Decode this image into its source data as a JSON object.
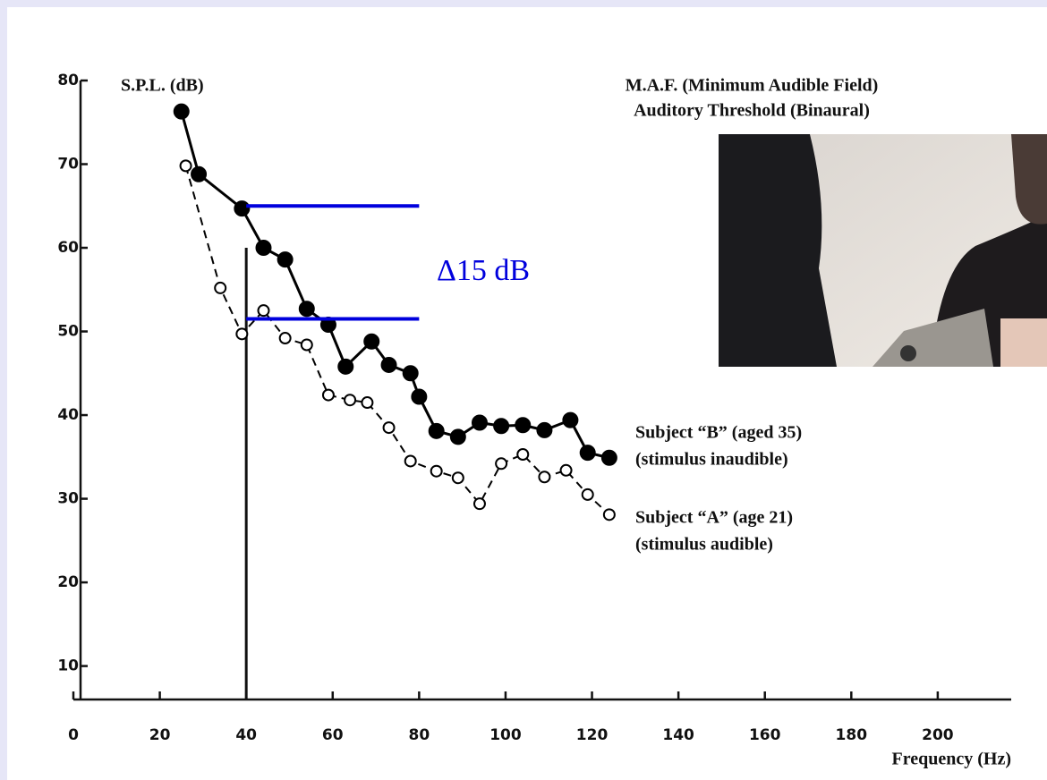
{
  "chart_data": {
    "type": "line",
    "title": "M.A.F. (Minimum Audible Field)",
    "subtitle": "Auditory Threshold (Binaural)",
    "y_label": "S.P.L. (dB)",
    "x_label": "Frequency (Hz)",
    "xlim": [
      0,
      217
    ],
    "ylim": [
      6,
      80
    ],
    "xticks": [
      0,
      20,
      40,
      60,
      80,
      100,
      120,
      140,
      160,
      180,
      200
    ],
    "yticks": [
      10,
      20,
      30,
      40,
      50,
      60,
      70,
      80
    ],
    "series": [
      {
        "name": "Subject “B” (aged 35)",
        "note": "(stimulus inaudible)",
        "color": "#000000",
        "marker": "filled",
        "dashed": false,
        "x": [
          25,
          29,
          39,
          44,
          49,
          54,
          59,
          63,
          69,
          73,
          78,
          80,
          84,
          89,
          94,
          99,
          104,
          109,
          115,
          119,
          124
        ],
        "values": [
          76.3,
          68.8,
          64.7,
          60,
          58.6,
          52.7,
          50.8,
          45.8,
          48.8,
          46,
          45,
          42.2,
          38.1,
          37.4,
          39.1,
          38.7,
          38.8,
          38.2,
          39.4,
          35.5,
          34.9
        ]
      },
      {
        "name": "Subject “A” (age 21)",
        "note": "(stimulus audible)",
        "color": "#000000",
        "marker": "open",
        "dashed": true,
        "x": [
          26,
          34,
          39,
          44,
          49,
          54,
          59,
          64,
          68,
          73,
          78,
          84,
          89,
          94,
          99,
          104,
          109,
          114,
          119,
          124
        ],
        "values": [
          69.8,
          55.2,
          49.7,
          52.5,
          49.2,
          48.4,
          42.4,
          41.8,
          41.5,
          38.5,
          34.5,
          33.3,
          32.5,
          29.4,
          34.2,
          35.3,
          32.6,
          33.4,
          30.5,
          28.1
        ]
      }
    ],
    "reference_lines": {
      "y": [
        65,
        51.5
      ],
      "x_range": [
        40,
        80
      ],
      "color": "#0000dd",
      "label": "Δ15 dB"
    },
    "vline": {
      "x": 40,
      "top": 60
    }
  }
}
